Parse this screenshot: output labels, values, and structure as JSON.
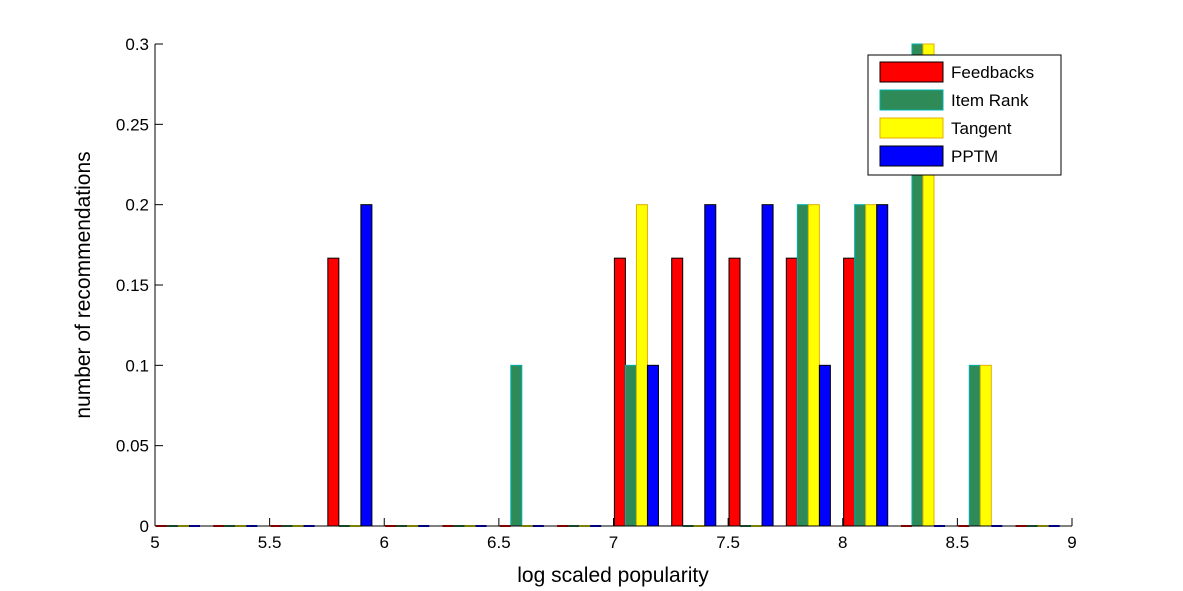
{
  "chart_data": {
    "type": "bar",
    "xlabel": "log scaled popularity",
    "ylabel": "number of recommendations",
    "xlim": [
      5,
      9
    ],
    "ylim": [
      0,
      0.3
    ],
    "xticks": [
      "5",
      "5.5",
      "6",
      "6.5",
      "7",
      "7.5",
      "8",
      "8.5",
      "9"
    ],
    "yticks": [
      "0",
      "0.05",
      "0.1",
      "0.15",
      "0.2",
      "0.25",
      "0.3"
    ],
    "grid": false,
    "legend_position": "top-right",
    "bin_centers": [
      5.1,
      5.35,
      5.6,
      5.85,
      6.1,
      6.35,
      6.6,
      6.85,
      7.1,
      7.35,
      7.6,
      7.85,
      8.1,
      8.35,
      8.6,
      8.85
    ],
    "series": [
      {
        "name": "Feedbacks",
        "color": "#ff0000",
        "edge": "#000000",
        "values": [
          0,
          0,
          0,
          0.1667,
          0,
          0,
          0,
          0,
          0.1667,
          0.1667,
          0.1667,
          0.1667,
          0.1667,
          0,
          0,
          0
        ]
      },
      {
        "name": "Item Rank",
        "color": "#2e8b57",
        "edge": "#00b0b0",
        "values": [
          0,
          0,
          0,
          0,
          0,
          0,
          0.1,
          0,
          0.1,
          0,
          0,
          0.2,
          0.2,
          0.3,
          0.1,
          0
        ]
      },
      {
        "name": "Tangent",
        "color": "#ffff00",
        "edge": "#e0b000",
        "values": [
          0,
          0,
          0,
          0,
          0,
          0,
          0,
          0,
          0.2,
          0,
          0,
          0.2,
          0.2,
          0.3,
          0.1,
          0
        ]
      },
      {
        "name": "PPTM",
        "color": "#0000ff",
        "edge": "#000000",
        "values": [
          0,
          0,
          0,
          0.2,
          0,
          0,
          0,
          0,
          0.1,
          0.2,
          0.2,
          0.1,
          0.2,
          0,
          0,
          0
        ]
      }
    ]
  }
}
